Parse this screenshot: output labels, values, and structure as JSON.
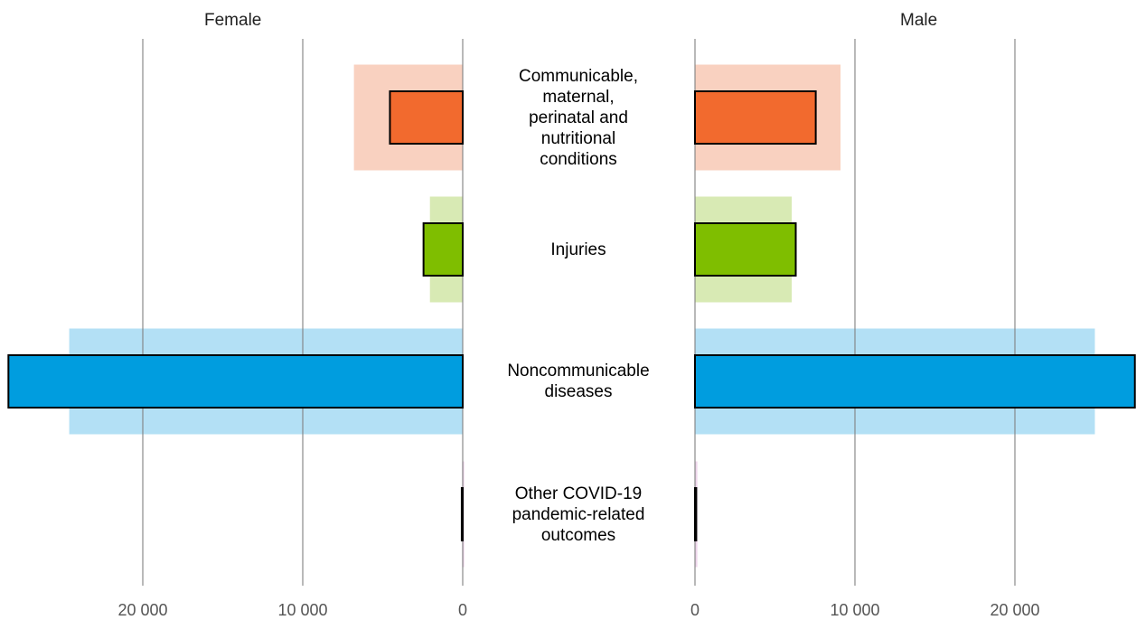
{
  "chart_data": {
    "type": "bar",
    "orientation": "horizontal-back-to-back",
    "panels": [
      "Female",
      "Male"
    ],
    "categories": [
      "Communicable, maternal, perinatal and nutritional conditions",
      "Injuries",
      "Noncommunicable diseases",
      "Other COVID-19 pandemic-related outcomes"
    ],
    "category_lines": [
      [
        "Communicable,",
        "maternal,",
        "perinatal and",
        "nutritional",
        "conditions"
      ],
      [
        "Injuries"
      ],
      [
        "Noncommunicable",
        "diseases"
      ],
      [
        "Other COVID-19",
        "pandemic-related",
        "outcomes"
      ]
    ],
    "series": [
      {
        "values": {
          "Female": [
            4550,
            2450,
            28400,
            60
          ],
          "Male": [
            7550,
            6300,
            27500,
            80
          ]
        }
      },
      {
        "values": {
          "Female": [
            6800,
            2050,
            24600,
            20
          ],
          "Male": [
            9100,
            6050,
            25000,
            150
          ]
        }
      }
    ],
    "colors": {
      "dark": [
        "#f26a2e",
        "#7fbe00",
        "#009ddf",
        "#d9a9d2"
      ],
      "light": [
        "#f9d1c0",
        "#d8eab4",
        "#b3e0f5",
        "#eed5ea"
      ]
    },
    "ticks": {
      "Female": [
        {
          "value": 20000,
          "label": "20 000"
        },
        {
          "value": 10000,
          "label": "10 000"
        },
        {
          "value": 0,
          "label": "0"
        }
      ],
      "Male": [
        {
          "value": 0,
          "label": "0"
        },
        {
          "value": 10000,
          "label": "10 000"
        },
        {
          "value": 20000,
          "label": "20 000"
        }
      ]
    },
    "xlim": [
      0,
      28400
    ],
    "grid": true
  }
}
